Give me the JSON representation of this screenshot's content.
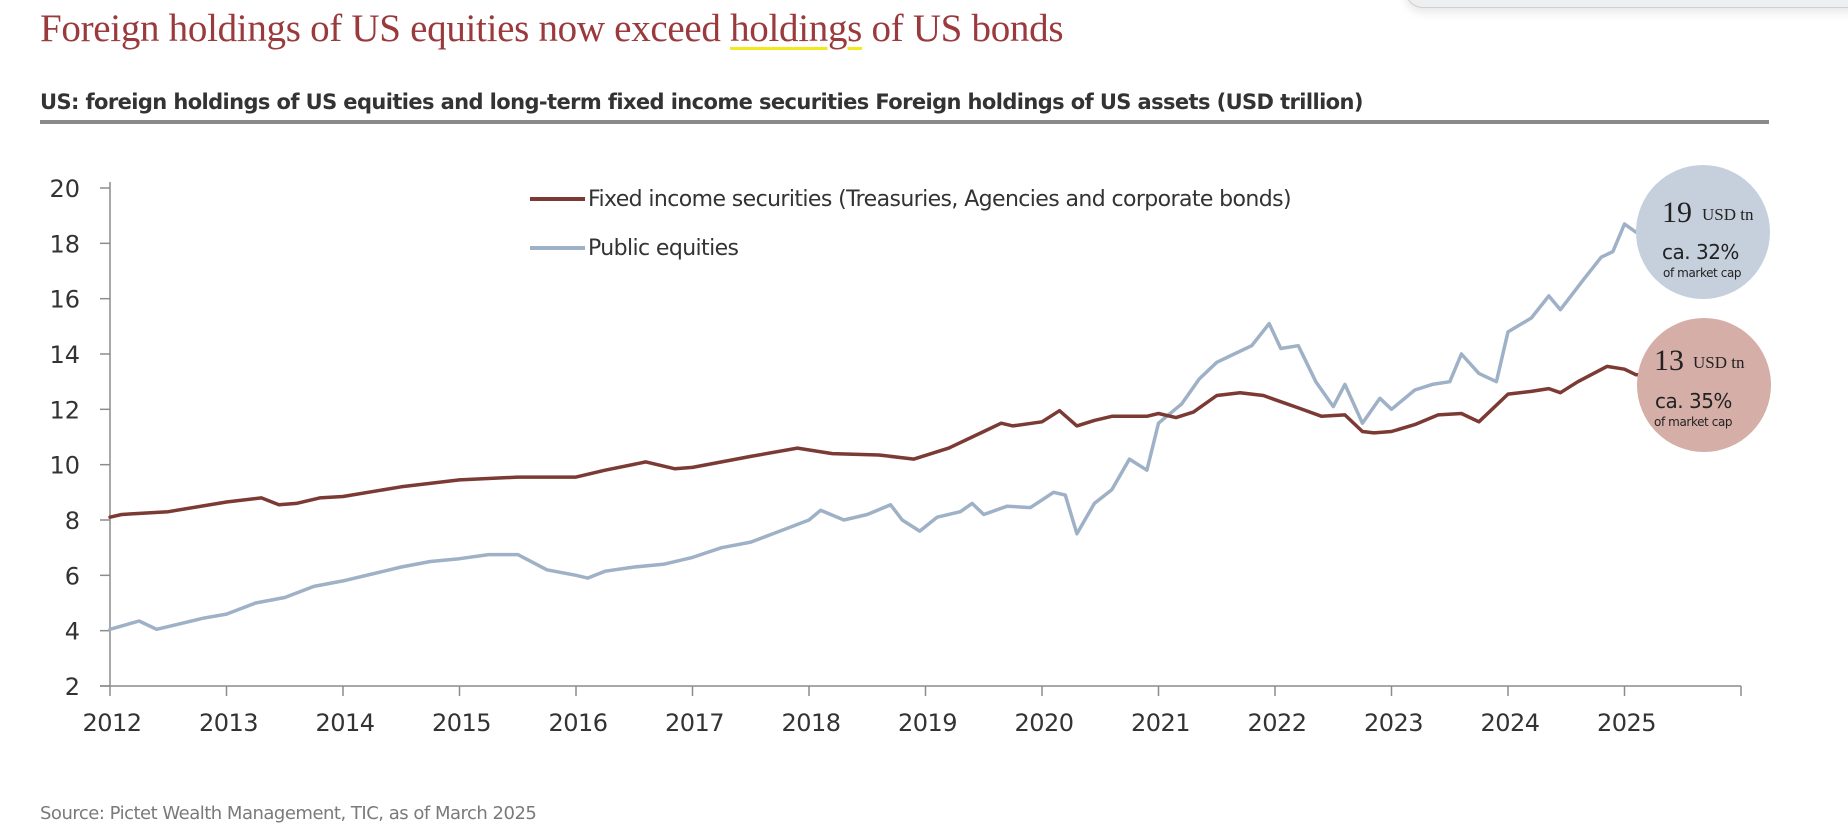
{
  "title": {
    "before": "Foreign holdings of US equities now exceed ",
    "highlight": "holdings",
    "after": " of US bonds"
  },
  "subtitle": "US: foreign holdings of US equities and long-term fixed income securities Foreign holdings of US assets (USD trillion)",
  "source": "Source: Pictet Wealth Management, TIC, as of March 2025",
  "colors": {
    "title": "#9a3a3c",
    "fixed_income": "#7b3a33",
    "equities": "#9eb1c6",
    "equities_badge": "#c6d0dc",
    "fixed_income_badge": "#d6aea8",
    "highlight": "#f2ea1d"
  },
  "badges": {
    "equities": {
      "value": "19",
      "unit": "USD tn",
      "share": "ca. 32%",
      "note": "of market cap"
    },
    "fixed_income": {
      "value": "13",
      "unit": "USD tn",
      "share": "ca. 35%",
      "note": "of market cap"
    }
  },
  "chart_data": {
    "type": "line",
    "title": "US: foreign holdings of US equities and long-term fixed income securities Foreign holdings of US assets (USD trillion)",
    "xlabel": "",
    "ylabel": "",
    "xlim": [
      2012,
      2026
    ],
    "ylim": [
      2,
      20
    ],
    "x_ticks": [
      "2012",
      "2013",
      "2014",
      "2015",
      "2016",
      "2017",
      "2018",
      "2019",
      "2020",
      "2021",
      "2022",
      "2023",
      "2024",
      "2025"
    ],
    "y_ticks": [
      "2",
      "4",
      "6",
      "8",
      "10",
      "12",
      "14",
      "16",
      "18",
      "20"
    ],
    "grid": false,
    "legend_position": "top-center",
    "series": [
      {
        "name": "Fixed income securities (Treasuries, Agencies and corporate bonds)",
        "x": [
          2012.0,
          2012.1,
          2012.5,
          2013.0,
          2013.3,
          2013.45,
          2013.6,
          2013.8,
          2014.0,
          2014.5,
          2015.0,
          2015.5,
          2016.0,
          2016.25,
          2016.6,
          2016.85,
          2017.0,
          2017.5,
          2017.9,
          2018.2,
          2018.6,
          2018.9,
          2019.2,
          2019.5,
          2019.65,
          2019.75,
          2020.0,
          2020.15,
          2020.3,
          2020.45,
          2020.6,
          2020.9,
          2021.0,
          2021.15,
          2021.3,
          2021.5,
          2021.7,
          2021.9,
          2022.0,
          2022.2,
          2022.4,
          2022.6,
          2022.75,
          2022.85,
          2023.0,
          2023.2,
          2023.4,
          2023.6,
          2023.75,
          2024.0,
          2024.2,
          2024.35,
          2024.45,
          2024.6,
          2024.85,
          2025.0,
          2025.1,
          2025.2
        ],
        "values": [
          8.1,
          8.2,
          8.3,
          8.65,
          8.8,
          8.55,
          8.6,
          8.8,
          8.85,
          9.2,
          9.45,
          9.55,
          9.55,
          9.8,
          10.1,
          9.85,
          9.9,
          10.3,
          10.6,
          10.4,
          10.35,
          10.2,
          10.6,
          11.2,
          11.5,
          11.4,
          11.55,
          11.95,
          11.4,
          11.6,
          11.75,
          11.75,
          11.85,
          11.7,
          11.9,
          12.5,
          12.6,
          12.5,
          12.35,
          12.05,
          11.75,
          11.8,
          11.2,
          11.15,
          11.2,
          11.45,
          11.8,
          11.85,
          11.55,
          12.55,
          12.65,
          12.75,
          12.6,
          13.0,
          13.55,
          13.45,
          13.25,
          13.25
        ]
      },
      {
        "name": "Public equities",
        "x": [
          2012.0,
          2012.25,
          2012.4,
          2012.6,
          2012.8,
          2013.0,
          2013.25,
          2013.5,
          2013.75,
          2014.0,
          2014.25,
          2014.5,
          2014.75,
          2015.0,
          2015.25,
          2015.5,
          2015.75,
          2016.0,
          2016.1,
          2016.25,
          2016.5,
          2016.75,
          2017.0,
          2017.25,
          2017.5,
          2017.75,
          2018.0,
          2018.1,
          2018.3,
          2018.5,
          2018.7,
          2018.8,
          2018.95,
          2019.1,
          2019.3,
          2019.4,
          2019.5,
          2019.7,
          2019.9,
          2020.1,
          2020.2,
          2020.3,
          2020.45,
          2020.6,
          2020.75,
          2020.9,
          2021.0,
          2021.2,
          2021.35,
          2021.5,
          2021.65,
          2021.8,
          2021.95,
          2022.05,
          2022.2,
          2022.35,
          2022.5,
          2022.6,
          2022.75,
          2022.9,
          2023.0,
          2023.2,
          2023.35,
          2023.5,
          2023.6,
          2023.75,
          2023.9,
          2024.0,
          2024.2,
          2024.35,
          2024.45,
          2024.65,
          2024.8,
          2024.9,
          2025.0,
          2025.1,
          2025.2
        ],
        "values": [
          4.05,
          4.35,
          4.05,
          4.25,
          4.45,
          4.6,
          5.0,
          5.2,
          5.6,
          5.8,
          6.05,
          6.3,
          6.5,
          6.6,
          6.75,
          6.75,
          6.2,
          6.0,
          5.9,
          6.15,
          6.3,
          6.4,
          6.65,
          7.0,
          7.2,
          7.6,
          8.0,
          8.35,
          8.0,
          8.2,
          8.55,
          8.0,
          7.6,
          8.1,
          8.3,
          8.6,
          8.2,
          8.5,
          8.45,
          9.0,
          8.9,
          7.5,
          8.6,
          9.1,
          10.2,
          9.8,
          11.5,
          12.2,
          13.1,
          13.7,
          14.0,
          14.3,
          15.1,
          14.2,
          14.3,
          13.0,
          12.1,
          12.9,
          11.5,
          12.4,
          12.0,
          12.7,
          12.9,
          13.0,
          14.0,
          13.3,
          13.0,
          14.8,
          15.3,
          16.1,
          15.6,
          16.7,
          17.5,
          17.7,
          18.7,
          18.4,
          18.9
        ]
      }
    ]
  }
}
